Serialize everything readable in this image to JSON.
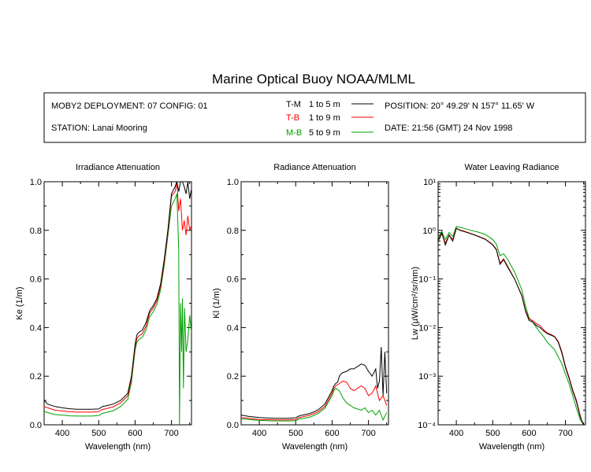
{
  "header": {
    "title": "Marine Optical Buoy NOAA/MLML",
    "deployment": "MOBY2 DEPLOYMENT: 07 CONFIG: 01",
    "station": "STATION: Lanai Mooring",
    "position": "POSITION: 20° 49.29' N   157° 11.65' W",
    "date": "DATE: 21:56 (GMT) 24 Nov 1998"
  },
  "legend": [
    {
      "code": "T-M",
      "range": "1 to 5  m",
      "color": "#000000"
    },
    {
      "code": "T-B",
      "range": "1 to 9  m",
      "color": "#ff0000"
    },
    {
      "code": "M-B",
      "range": "5 to 9  m",
      "color": "#00a000"
    }
  ],
  "chart_data": [
    {
      "type": "line",
      "title": "Irradiance Attenuation",
      "xlabel": "Wavelength (nm)",
      "ylabel": "Ke  (1/m)",
      "xlim": [
        350,
        755
      ],
      "ylim": [
        0,
        1.0
      ],
      "xticks": [
        400,
        500,
        600,
        700
      ],
      "yticks": [
        0.0,
        0.2,
        0.4,
        0.6,
        0.8,
        1.0
      ],
      "ytick_labels": [
        "0.0",
        "0.2",
        "0.4",
        "0.6",
        "0.8",
        "1.0"
      ],
      "series": [
        {
          "name": "T-M",
          "color": "#000000",
          "x": [
            350,
            360,
            380,
            400,
            420,
            440,
            460,
            480,
            500,
            510,
            520,
            540,
            560,
            580,
            590,
            600,
            605,
            610,
            620,
            630,
            640,
            650,
            660,
            670,
            680,
            690,
            700,
            710,
            715,
            720,
            725,
            730,
            735,
            740,
            745,
            750,
            755
          ],
          "y": [
            0.1,
            0.085,
            0.075,
            0.07,
            0.066,
            0.064,
            0.064,
            0.064,
            0.065,
            0.075,
            0.078,
            0.085,
            0.1,
            0.13,
            0.2,
            0.33,
            0.37,
            0.38,
            0.39,
            0.42,
            0.47,
            0.49,
            0.52,
            0.58,
            0.68,
            0.8,
            0.95,
            0.98,
            1.0,
            0.96,
            1.0,
            1.0,
            0.98,
            0.95,
            1.0,
            0.93,
            0.97
          ]
        },
        {
          "name": "T-B",
          "color": "#ff0000",
          "x": [
            350,
            360,
            380,
            400,
            420,
            440,
            460,
            480,
            500,
            510,
            520,
            540,
            560,
            580,
            590,
            600,
            605,
            610,
            620,
            630,
            640,
            650,
            660,
            670,
            680,
            690,
            700,
            710,
            715,
            720,
            725,
            730,
            735,
            740,
            745,
            750,
            755
          ],
          "y": [
            0.075,
            0.07,
            0.06,
            0.057,
            0.054,
            0.052,
            0.052,
            0.052,
            0.054,
            0.063,
            0.066,
            0.074,
            0.09,
            0.12,
            0.19,
            0.32,
            0.355,
            0.365,
            0.375,
            0.405,
            0.46,
            0.48,
            0.51,
            0.57,
            0.67,
            0.79,
            0.94,
            0.96,
            1.0,
            0.88,
            0.93,
            0.8,
            0.84,
            0.78,
            0.86,
            0.8,
            0.82
          ]
        },
        {
          "name": "M-B",
          "color": "#00a000",
          "x": [
            350,
            360,
            380,
            400,
            420,
            440,
            460,
            480,
            500,
            510,
            520,
            540,
            560,
            580,
            590,
            600,
            605,
            610,
            620,
            630,
            640,
            650,
            660,
            670,
            680,
            690,
            700,
            710,
            715,
            720,
            722,
            725,
            728,
            730,
            733,
            736,
            740,
            745,
            750,
            755
          ],
          "y": [
            0.055,
            0.05,
            0.042,
            0.04,
            0.037,
            0.036,
            0.036,
            0.036,
            0.038,
            0.047,
            0.05,
            0.058,
            0.075,
            0.105,
            0.175,
            0.305,
            0.34,
            0.35,
            0.36,
            0.39,
            0.445,
            0.465,
            0.495,
            0.555,
            0.655,
            0.775,
            0.9,
            0.93,
            0.95,
            0.72,
            0.0,
            0.5,
            0.3,
            0.52,
            0.15,
            0.48,
            0.3,
            0.35,
            0.45,
            0.38
          ]
        }
      ]
    },
    {
      "type": "line",
      "title": "Radiance Attenuation",
      "xlabel": "Wavelength (nm)",
      "ylabel": "Kl  (1/m)",
      "xlim": [
        350,
        755
      ],
      "ylim": [
        0,
        1.0
      ],
      "xticks": [
        400,
        500,
        600,
        700
      ],
      "yticks": [
        0.0,
        0.2,
        0.4,
        0.6,
        0.8,
        1.0
      ],
      "ytick_labels": [
        "0.0",
        "0.2",
        "0.4",
        "0.6",
        "0.8",
        "1.0"
      ],
      "series": [
        {
          "name": "T-M",
          "color": "#000000",
          "x": [
            350,
            370,
            400,
            420,
            440,
            460,
            480,
            500,
            510,
            520,
            540,
            560,
            580,
            600,
            605,
            610,
            615,
            620,
            625,
            630,
            640,
            650,
            660,
            670,
            680,
            690,
            700,
            710,
            720,
            725,
            730,
            735,
            740,
            745,
            750
          ],
          "y": [
            0.04,
            0.035,
            0.03,
            0.028,
            0.027,
            0.027,
            0.027,
            0.029,
            0.037,
            0.04,
            0.047,
            0.06,
            0.085,
            0.14,
            0.16,
            0.17,
            0.175,
            0.2,
            0.21,
            0.215,
            0.22,
            0.23,
            0.23,
            0.24,
            0.25,
            0.245,
            0.22,
            0.2,
            0.23,
            0.15,
            0.18,
            0.32,
            0.12,
            0.3,
            0.13
          ]
        },
        {
          "name": "T-B",
          "color": "#ff0000",
          "x": [
            350,
            370,
            400,
            420,
            440,
            460,
            480,
            500,
            510,
            520,
            540,
            560,
            580,
            600,
            605,
            610,
            620,
            630,
            640,
            650,
            660,
            670,
            680,
            690,
            700,
            710,
            720,
            730,
            740,
            750
          ],
          "y": [
            0.03,
            0.027,
            0.022,
            0.021,
            0.02,
            0.02,
            0.02,
            0.022,
            0.03,
            0.033,
            0.04,
            0.052,
            0.075,
            0.13,
            0.15,
            0.16,
            0.17,
            0.18,
            0.175,
            0.15,
            0.14,
            0.15,
            0.16,
            0.15,
            0.12,
            0.13,
            0.16,
            0.1,
            0.12,
            0.08
          ]
        },
        {
          "name": "M-B",
          "color": "#00a000",
          "x": [
            350,
            370,
            400,
            420,
            440,
            460,
            480,
            500,
            510,
            520,
            540,
            560,
            580,
            600,
            605,
            610,
            620,
            630,
            640,
            650,
            660,
            670,
            680,
            690,
            700,
            710,
            720,
            730,
            740,
            750
          ],
          "y": [
            0.025,
            0.022,
            0.018,
            0.017,
            0.016,
            0.016,
            0.016,
            0.017,
            0.024,
            0.026,
            0.032,
            0.045,
            0.068,
            0.12,
            0.14,
            0.15,
            0.14,
            0.11,
            0.09,
            0.08,
            0.07,
            0.065,
            0.06,
            0.07,
            0.05,
            0.06,
            0.04,
            0.06,
            0.02,
            0.05
          ]
        }
      ]
    },
    {
      "type": "line",
      "title": "Water Leaving Radiance",
      "xlabel": "Wavelength (nm)",
      "ylabel": "Lw  (µW/cm²/sr/nm)",
      "xlim": [
        350,
        755
      ],
      "ylim": [
        0.0001,
        10
      ],
      "yscale": "log",
      "xticks": [
        400,
        500,
        600,
        700
      ],
      "yticks": [
        0.0001,
        0.001,
        0.01,
        0.1,
        1,
        10
      ],
      "ytick_labels": [
        "10⁻⁴",
        "10⁻³",
        "10⁻²",
        "10⁻¹",
        "10⁰",
        "10¹"
      ],
      "series": [
        {
          "name": "T-M",
          "color": "#000000",
          "x": [
            350,
            360,
            370,
            380,
            390,
            400,
            410,
            420,
            440,
            460,
            480,
            500,
            510,
            520,
            530,
            540,
            560,
            580,
            590,
            600,
            610,
            620,
            630,
            640,
            650,
            660,
            670,
            680,
            690,
            700,
            710,
            720,
            730,
            740,
            745,
            750
          ],
          "y": [
            0.6,
            0.9,
            0.5,
            0.8,
            0.6,
            1.1,
            1.0,
            0.95,
            0.85,
            0.75,
            0.65,
            0.5,
            0.4,
            0.2,
            0.25,
            0.18,
            0.1,
            0.045,
            0.022,
            0.014,
            0.013,
            0.011,
            0.01,
            0.0085,
            0.0075,
            0.007,
            0.0065,
            0.005,
            0.003,
            0.0015,
            0.0009,
            0.0005,
            0.0003,
            0.00015,
            0.00012,
            0.0001
          ]
        },
        {
          "name": "T-B",
          "color": "#ff0000",
          "x": [
            350,
            360,
            370,
            380,
            390,
            400,
            410,
            420,
            440,
            460,
            480,
            500,
            510,
            520,
            530,
            540,
            560,
            580,
            590,
            600,
            610,
            620,
            630,
            640,
            650,
            660,
            670,
            680,
            690,
            700,
            710,
            720,
            730,
            740,
            745,
            750
          ],
          "y": [
            0.6,
            0.85,
            0.55,
            0.8,
            0.65,
            1.1,
            1.02,
            0.97,
            0.86,
            0.76,
            0.66,
            0.51,
            0.41,
            0.21,
            0.26,
            0.19,
            0.1,
            0.046,
            0.023,
            0.015,
            0.014,
            0.012,
            0.011,
            0.009,
            0.0078,
            0.0072,
            0.0066,
            0.0052,
            0.0032,
            0.0016,
            0.00095,
            0.00052,
            0.00032,
            0.00016,
            0.00012,
            0.0001
          ]
        },
        {
          "name": "M-B",
          "color": "#00a000",
          "x": [
            350,
            360,
            370,
            380,
            390,
            400,
            410,
            420,
            440,
            460,
            480,
            500,
            510,
            520,
            530,
            540,
            560,
            580,
            590,
            600,
            610,
            620,
            630,
            640,
            650,
            660,
            670,
            680,
            690,
            700,
            710,
            720,
            730,
            740,
            750
          ],
          "y": [
            0.7,
            0.95,
            0.65,
            0.9,
            0.75,
            1.2,
            1.15,
            1.1,
            1.0,
            0.92,
            0.82,
            0.65,
            0.52,
            0.3,
            0.33,
            0.26,
            0.14,
            0.06,
            0.028,
            0.016,
            0.013,
            0.01,
            0.008,
            0.0065,
            0.005,
            0.0042,
            0.0035,
            0.0025,
            0.0018,
            0.0011,
            0.0007,
            0.0004,
            0.00022,
            0.00013,
            0.0001
          ]
        }
      ]
    }
  ]
}
